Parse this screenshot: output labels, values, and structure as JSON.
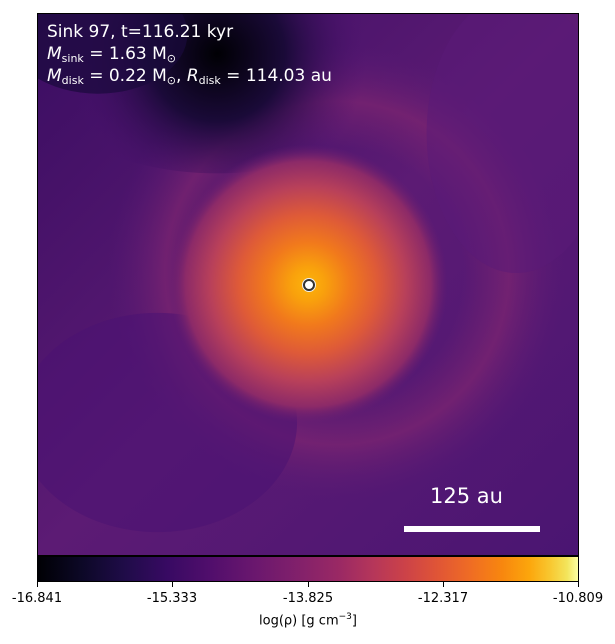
{
  "panel": {
    "line1": "Sink 97, t=116.21 kyr",
    "m_sink_label": "M",
    "m_sink_sub": "sink",
    "m_sink_value": " = 1.63 M",
    "m_sun_sub": "⊙",
    "m_disk_label": "M",
    "m_disk_sub": "disk",
    "m_disk_value": " = 0.22 M",
    "m_disk_sun_sub": "⊙",
    "r_disk_sep": ", ",
    "r_disk_label": "R",
    "r_disk_sub": "disk",
    "r_disk_value": " = 114.03 au"
  },
  "scale_bar": {
    "label": "125 au"
  },
  "colorbar": {
    "colormap": "inferno",
    "ticks": [
      "-16.841",
      "-15.333",
      "-13.825",
      "-12.317",
      "-10.809"
    ],
    "title_main": "log(ρ) [g cm",
    "title_sup": "−3",
    "title_end": "]"
  }
}
